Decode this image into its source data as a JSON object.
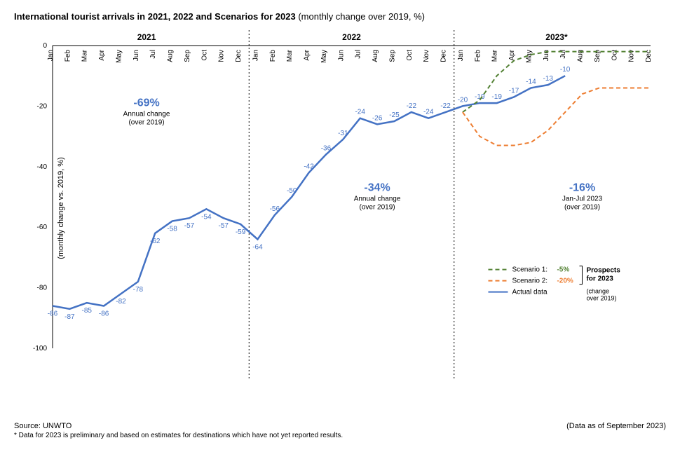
{
  "title_main": "International tourist arrivals in 2021, 2022 and Scenarios for 2023",
  "title_sub": " (monthly change over 2019, %)",
  "title_fontsize": 13,
  "y_axis_label": "(monthly change vs. 2019, %)",
  "y_axis_fontsize": 11,
  "ylim": [
    -100,
    0
  ],
  "ytick_step": 20,
  "yticks": [
    0,
    -20,
    -40,
    -60,
    -80,
    -100
  ],
  "months": [
    "Jan",
    "Feb",
    "Mar",
    "Apr",
    "May",
    "Jun",
    "Jul",
    "Aug",
    "Sep",
    "Oct",
    "Nov",
    "Dec"
  ],
  "year_labels": [
    "2021",
    "2022",
    "2023*"
  ],
  "year_label_fontsize": 12,
  "year_label_weight": "bold",
  "month_fontsize": 10,
  "actual_data": {
    "color": "#4472c4",
    "line_width": 2.5,
    "label": "Actual data",
    "values": [
      -86,
      -87,
      -85,
      -86,
      -82,
      -78,
      -62,
      -58,
      -57,
      -54,
      -57,
      -59,
      -64,
      -56,
      -50,
      -42,
      -36,
      -31,
      -24,
      -26,
      -25,
      -22,
      -24,
      -22,
      -20,
      -19,
      -19,
      -17,
      -14,
      -13,
      -10
    ],
    "data_label_fontsize": 10,
    "data_label_color": "#4472c4"
  },
  "scenario1": {
    "color": "#548235",
    "line_width": 2,
    "dash": "6,4",
    "label": "Scenario 1:",
    "pct_label": "-5%",
    "values_start_index": 24,
    "values": [
      -22,
      -18,
      -10,
      -5,
      -3,
      -2,
      -2,
      -2,
      -2,
      -2,
      -2,
      -2
    ]
  },
  "scenario2": {
    "color": "#ed7d31",
    "line_width": 2,
    "dash": "6,4",
    "label": "Scenario 2:",
    "pct_label": "-20%",
    "values_start_index": 24,
    "values": [
      -22,
      -30,
      -33,
      -33,
      -32,
      -28,
      -22,
      -16,
      -14,
      -14,
      -14,
      -14
    ]
  },
  "annotations": {
    "2021": {
      "value": "-69%",
      "sub1": "Annual change",
      "sub2": "(over 2019)"
    },
    "2022": {
      "value": "-34%",
      "sub1": "Annual change",
      "sub2": "(over 2019)"
    },
    "2023": {
      "value": "-16%",
      "sub1": "Jan-Jul 2023",
      "sub2": "(over 2019)"
    },
    "value_color": "#4472c4",
    "value_fontsize": 16,
    "value_weight": "bold",
    "sub_fontsize": 10,
    "sub_color": "#000000"
  },
  "legend": {
    "prospects_label": "Prospects for 2023",
    "change_label": "(change over 2019)",
    "fontsize": 10
  },
  "separators": {
    "color": "#000000",
    "dash": "2,3",
    "width": 1
  },
  "axis_line_color": "#000000",
  "grid_color": "none",
  "background_color": "#ffffff",
  "source_label": "Source: UNWTO",
  "footnote_text": "* Data for 2023 is preliminary and based on estimates for destinations which have not yet reported results.",
  "asof_label": "(Data as of September 2023)"
}
